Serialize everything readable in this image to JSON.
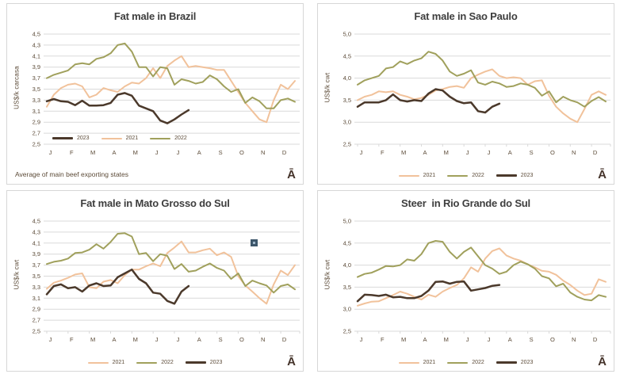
{
  "branding": {
    "logo_glyph": "Ā"
  },
  "colors": {
    "series_2021": "#F1C29B",
    "series_2022": "#A0A05C",
    "series_2023": "#4B392B",
    "grid": "#D9D9D9",
    "axis_text": "#5C4B38",
    "title_text": "#3E3E3E",
    "panel_border": "#D7D7D7",
    "artifact_square": "#3D566A",
    "artifact_dot": "#9FB6C9"
  },
  "chart_data": [
    {
      "type": "line",
      "title": "Fat male in Brazil",
      "ylabel": "US$/k carcasa",
      "ylim": [
        2.5,
        4.5
      ],
      "ystep": 0.2,
      "yticks": [
        "4,5",
        "4,3",
        "4,1",
        "3,9",
        "3,7",
        "3,5",
        "3,3",
        "3,1",
        "2,9",
        "2,7",
        "2,5"
      ],
      "x_labels": [
        "J",
        "F",
        "M",
        "A",
        "M",
        "J",
        "J",
        "A",
        "S",
        "O",
        "N",
        "D"
      ],
      "points_per_year": 36,
      "x_axis_ticks": false,
      "grid": true,
      "legend_position": "inside",
      "legend_order": [
        "2023",
        "2021",
        "2022"
      ],
      "footnote": "Average  of main  beef exporting states",
      "series": [
        {
          "name": "2021",
          "color": "series_2021",
          "width": 2,
          "values": [
            3.18,
            3.4,
            3.52,
            3.58,
            3.6,
            3.55,
            3.35,
            3.4,
            3.52,
            3.48,
            3.45,
            3.55,
            3.62,
            3.6,
            3.7,
            3.88,
            3.7,
            3.92,
            4.02,
            4.1,
            3.9,
            3.92,
            3.9,
            3.88,
            3.85,
            3.85,
            3.65,
            3.45,
            3.25,
            3.1,
            2.95,
            2.9,
            3.3,
            3.58,
            3.5,
            3.65
          ]
        },
        {
          "name": "2022",
          "color": "series_2022",
          "width": 2,
          "values": [
            3.7,
            3.76,
            3.8,
            3.84,
            3.95,
            3.97,
            3.95,
            4.05,
            4.08,
            4.15,
            4.3,
            4.33,
            4.18,
            3.9,
            3.9,
            3.73,
            3.9,
            3.88,
            3.58,
            3.68,
            3.65,
            3.6,
            3.63,
            3.75,
            3.68,
            3.55,
            3.45,
            3.5,
            3.25,
            3.35,
            3.28,
            3.15,
            3.15,
            3.3,
            3.33,
            3.27
          ]
        },
        {
          "name": "2023",
          "color": "series_2023",
          "width": 2.5,
          "values": [
            3.28,
            3.32,
            3.28,
            3.27,
            3.21,
            3.29,
            3.2,
            3.2,
            3.21,
            3.25,
            3.4,
            3.43,
            3.38,
            3.2,
            3.15,
            3.1,
            2.93,
            2.88,
            2.95,
            3.04,
            3.12
          ]
        }
      ]
    },
    {
      "type": "line",
      "title": "Fat male in Sao Paulo",
      "ylabel": "US$/k  cwt",
      "ylim": [
        2.5,
        5.0
      ],
      "ystep": 0.5,
      "yticks": [
        "5,0",
        "4,5",
        "4,0",
        "3,5",
        "3,0",
        "2,5"
      ],
      "x_labels": [
        "J",
        "F",
        "M",
        "A",
        "M",
        "J",
        "J",
        "A",
        "S",
        "O",
        "N",
        "D"
      ],
      "points_per_year": 36,
      "x_axis_ticks": true,
      "grid": true,
      "legend_position": "bottom",
      "legend_order": [
        "2021",
        "2022",
        "2023"
      ],
      "series": [
        {
          "name": "2021",
          "color": "series_2021",
          "width": 2,
          "values": [
            3.5,
            3.58,
            3.62,
            3.7,
            3.68,
            3.7,
            3.62,
            3.58,
            3.52,
            3.55,
            3.62,
            3.72,
            3.75,
            3.8,
            3.82,
            3.78,
            4.0,
            4.08,
            4.15,
            4.2,
            4.05,
            4.0,
            4.02,
            4.0,
            3.85,
            3.93,
            3.95,
            3.6,
            3.35,
            3.2,
            3.08,
            3.0,
            3.3,
            3.62,
            3.7,
            3.62
          ]
        },
        {
          "name": "2022",
          "color": "series_2022",
          "width": 2,
          "values": [
            3.85,
            3.95,
            4.0,
            4.05,
            4.22,
            4.25,
            4.38,
            4.32,
            4.4,
            4.45,
            4.6,
            4.55,
            4.4,
            4.15,
            4.05,
            4.1,
            4.18,
            3.9,
            3.85,
            3.92,
            3.88,
            3.8,
            3.82,
            3.88,
            3.85,
            3.78,
            3.6,
            3.7,
            3.45,
            3.58,
            3.5,
            3.45,
            3.35,
            3.48,
            3.57,
            3.47
          ]
        },
        {
          "name": "2023",
          "color": "series_2023",
          "width": 2.5,
          "values": [
            3.35,
            3.45,
            3.45,
            3.45,
            3.5,
            3.63,
            3.5,
            3.47,
            3.5,
            3.48,
            3.65,
            3.75,
            3.72,
            3.58,
            3.48,
            3.43,
            3.45,
            3.25,
            3.22,
            3.35,
            3.42
          ]
        }
      ]
    },
    {
      "type": "line",
      "title": "Fat male in Mato Grosso do Sul",
      "ylabel": "US$/k  cwt",
      "ylim": [
        2.5,
        4.5
      ],
      "ystep": 0.2,
      "yticks": [
        "4,5",
        "4,3",
        "4,1",
        "3,9",
        "3,7",
        "3,5",
        "3,3",
        "3,1",
        "2,9",
        "2,7",
        "2,5"
      ],
      "x_labels": [
        "J",
        "F",
        "M",
        "A",
        "M",
        "J",
        "J",
        "A",
        "S",
        "O",
        "N",
        "D"
      ],
      "points_per_year": 36,
      "x_axis_ticks": true,
      "grid": true,
      "legend_position": "bottom",
      "legend_order": [
        "2021",
        "2022",
        "2023"
      ],
      "series": [
        {
          "name": "2021",
          "color": "series_2021",
          "width": 2,
          "values": [
            3.27,
            3.38,
            3.42,
            3.47,
            3.53,
            3.55,
            3.3,
            3.28,
            3.4,
            3.43,
            3.37,
            3.52,
            3.62,
            3.62,
            3.68,
            3.73,
            3.68,
            3.92,
            4.02,
            4.13,
            3.93,
            3.93,
            3.97,
            4.0,
            3.88,
            3.93,
            3.85,
            3.5,
            3.33,
            3.22,
            3.1,
            3.0,
            3.35,
            3.6,
            3.52,
            3.7
          ]
        },
        {
          "name": "2022",
          "color": "series_2022",
          "width": 2,
          "values": [
            3.72,
            3.76,
            3.78,
            3.82,
            3.92,
            3.93,
            3.98,
            4.08,
            4.0,
            4.12,
            4.27,
            4.28,
            4.22,
            3.9,
            3.92,
            3.77,
            3.9,
            3.87,
            3.63,
            3.72,
            3.58,
            3.6,
            3.67,
            3.73,
            3.65,
            3.6,
            3.45,
            3.55,
            3.32,
            3.42,
            3.37,
            3.33,
            3.2,
            3.32,
            3.35,
            3.26
          ]
        },
        {
          "name": "2023",
          "color": "series_2023",
          "width": 2.5,
          "values": [
            3.17,
            3.32,
            3.35,
            3.28,
            3.3,
            3.22,
            3.33,
            3.37,
            3.32,
            3.33,
            3.48,
            3.55,
            3.62,
            3.45,
            3.37,
            3.2,
            3.18,
            3.05,
            3.0,
            3.22,
            3.32
          ]
        }
      ]
    },
    {
      "type": "line",
      "title": "Steer  in Rio Grande do Sul",
      "ylabel": "US$/k  cwt",
      "ylim": [
        2.5,
        5.0
      ],
      "ystep": 0.5,
      "yticks": [
        "5,0",
        "4,5",
        "4,0",
        "3,5",
        "3,0",
        "2,5"
      ],
      "x_labels": [
        "J",
        "F",
        "M",
        "A",
        "M",
        "J",
        "J",
        "A",
        "S",
        "O",
        "N",
        "D"
      ],
      "points_per_year": 36,
      "x_axis_ticks": true,
      "grid": true,
      "legend_position": "bottom",
      "legend_order": [
        "2021",
        "2022",
        "2023"
      ],
      "series": [
        {
          "name": "2021",
          "color": "series_2021",
          "width": 2,
          "values": [
            3.08,
            3.13,
            3.17,
            3.18,
            3.25,
            3.32,
            3.4,
            3.35,
            3.28,
            3.22,
            3.33,
            3.28,
            3.4,
            3.48,
            3.55,
            3.7,
            3.95,
            3.85,
            4.15,
            4.32,
            4.38,
            4.22,
            4.15,
            4.1,
            4.02,
            3.95,
            3.87,
            3.85,
            3.78,
            3.65,
            3.55,
            3.42,
            3.32,
            3.35,
            3.68,
            3.62
          ]
        },
        {
          "name": "2022",
          "color": "series_2022",
          "width": 2,
          "values": [
            3.73,
            3.8,
            3.83,
            3.9,
            3.98,
            3.97,
            4.0,
            4.13,
            4.1,
            4.25,
            4.5,
            4.55,
            4.53,
            4.3,
            4.15,
            4.3,
            4.4,
            4.2,
            4.0,
            3.92,
            3.8,
            3.85,
            4.0,
            4.08,
            4.02,
            3.92,
            3.75,
            3.7,
            3.52,
            3.58,
            3.38,
            3.28,
            3.22,
            3.2,
            3.32,
            3.28
          ]
        },
        {
          "name": "2023",
          "color": "series_2023",
          "width": 2.5,
          "values": [
            3.18,
            3.33,
            3.32,
            3.3,
            3.33,
            3.27,
            3.28,
            3.25,
            3.25,
            3.3,
            3.42,
            3.62,
            3.63,
            3.58,
            3.62,
            3.63,
            3.42,
            3.45,
            3.48,
            3.53,
            3.55
          ]
        }
      ]
    }
  ]
}
